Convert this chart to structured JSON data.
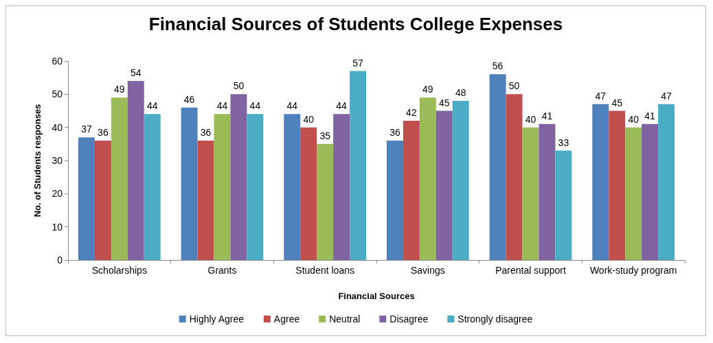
{
  "chart_data": {
    "type": "bar",
    "title": "Financial Sources of Students College Expenses",
    "xlabel": "Financial Sources",
    "ylabel": "No. of Students responses",
    "categories": [
      "Scholarships",
      "Grants",
      "Student loans",
      "Savings",
      "Parental support",
      "Work-study program"
    ],
    "series": [
      {
        "name": "Highly Agree",
        "color": "#4f81bd",
        "values": [
          37,
          46,
          44,
          36,
          56,
          47
        ]
      },
      {
        "name": "Agree",
        "color": "#c0504d",
        "values": [
          36,
          36,
          40,
          42,
          50,
          45
        ]
      },
      {
        "name": "Neutral",
        "color": "#9bbb59",
        "values": [
          49,
          44,
          35,
          49,
          40,
          40
        ]
      },
      {
        "name": "Disagree",
        "color": "#8064a2",
        "values": [
          54,
          50,
          44,
          45,
          41,
          41
        ]
      },
      {
        "name": "Strongly disagree",
        "color": "#4bacc6",
        "values": [
          44,
          44,
          57,
          48,
          33,
          47
        ]
      }
    ],
    "ylim": [
      0,
      60
    ],
    "yticks": [
      0,
      10,
      20,
      30,
      40,
      50,
      60
    ],
    "grid": false,
    "legend": "bottom",
    "data_labels": true
  }
}
